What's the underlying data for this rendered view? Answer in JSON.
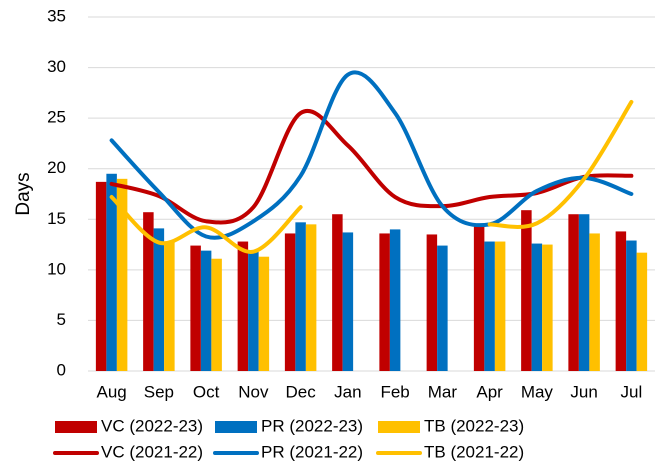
{
  "chart_data": {
    "type": "bar",
    "y_label": "Days",
    "categories": [
      "Aug",
      "Sep",
      "Oct",
      "Nov",
      "Dec",
      "Jan",
      "Feb",
      "Mar",
      "Apr",
      "May",
      "Jun",
      "Jul"
    ],
    "ylim": [
      0,
      35
    ],
    "yticks": [
      0,
      5,
      10,
      15,
      20,
      25,
      30,
      35
    ],
    "grid": true,
    "legend": "bottom",
    "smooth_lines": true,
    "series": [
      {
        "name": "VC (2022-23)",
        "type": "bar",
        "color": "#c00000",
        "values": [
          18.7,
          15.7,
          12.4,
          12.8,
          13.6,
          15.5,
          13.6,
          13.5,
          14.4,
          15.9,
          15.5,
          13.8
        ]
      },
      {
        "name": "PR (2022-23)",
        "type": "bar",
        "color": "#0070c0",
        "values": [
          19.5,
          14.1,
          11.9,
          11.8,
          14.7,
          13.7,
          14.0,
          12.4,
          12.8,
          12.6,
          15.5,
          12.9
        ]
      },
      {
        "name": "TB (2022-23)",
        "type": "bar",
        "color": "#ffc000",
        "values": [
          19.0,
          12.8,
          11.1,
          11.3,
          14.5,
          null,
          null,
          null,
          12.8,
          12.5,
          13.6,
          11.7
        ]
      },
      {
        "name": "VC (2021-22)",
        "type": "line",
        "color": "#c00000",
        "values": [
          18.5,
          17.3,
          14.8,
          16.2,
          25.5,
          22.3,
          17.2,
          16.3,
          17.2,
          17.6,
          19.2,
          19.3
        ]
      },
      {
        "name": "PR (2021-22)",
        "type": "line",
        "color": "#0070c0",
        "values": [
          22.8,
          17.7,
          13.3,
          14.8,
          19.3,
          29.3,
          25.5,
          16.3,
          14.5,
          17.8,
          19.1,
          17.5
        ]
      },
      {
        "name": "TB (2021-22)",
        "type": "line",
        "color": "#ffc000",
        "values": [
          17.2,
          12.7,
          14.2,
          11.8,
          16.2,
          null,
          null,
          null,
          14.5,
          14.6,
          19.0,
          26.6
        ]
      }
    ]
  }
}
